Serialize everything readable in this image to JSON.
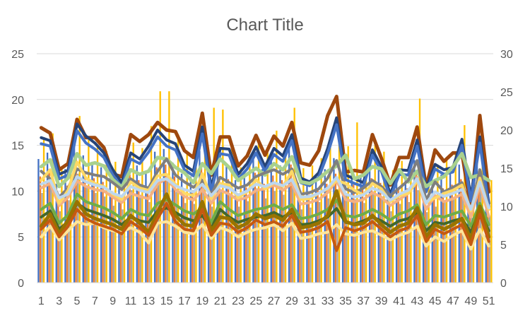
{
  "chart_data": {
    "type": "bar",
    "title": "Chart Title",
    "categories": [
      "1",
      "2",
      "3",
      "4",
      "5",
      "6",
      "7",
      "8",
      "9",
      "10",
      "11",
      "12",
      "13",
      "14",
      "15",
      "16",
      "17",
      "18",
      "19",
      "20",
      "21",
      "22",
      "23",
      "24",
      "25",
      "26",
      "27",
      "28",
      "29",
      "30",
      "31",
      "32",
      "33",
      "34",
      "35",
      "36",
      "37",
      "38",
      "39",
      "40",
      "41",
      "42",
      "43",
      "44",
      "45",
      "46",
      "47",
      "48",
      "49",
      "50",
      "51"
    ],
    "x_tick_labels": [
      "1",
      "3",
      "5",
      "7",
      "9",
      "11",
      "13",
      "15",
      "17",
      "19",
      "21",
      "23",
      "25",
      "27",
      "29",
      "31",
      "33",
      "35",
      "37",
      "39",
      "41",
      "43",
      "45",
      "47",
      "49",
      "51"
    ],
    "y_left": {
      "range": [
        0,
        25
      ],
      "ticks": [
        "0",
        "5",
        "10",
        "15",
        "20",
        "25"
      ]
    },
    "y_right": {
      "range": [
        0,
        30
      ],
      "ticks": [
        "0",
        "5",
        "10",
        "15",
        "20",
        "25",
        "30"
      ]
    },
    "grid": true,
    "legend": "none",
    "colors": [
      "#4472C4",
      "#ED7D31",
      "#A5A5A5",
      "#FFC000",
      "#5B9BD5",
      "#70AD47",
      "#264478",
      "#9E480E",
      "#636363",
      "#997300",
      "#255E91",
      "#43682B",
      "#698ED0",
      "#F1975A",
      "#B7B7B7",
      "#FFCD33",
      "#7CAFDD",
      "#8CC168"
    ],
    "bar_series": [
      {
        "values": [
          13.5,
          14.2,
          10.8,
          12.4,
          15.8,
          13.9,
          13.2,
          12.6,
          11.4,
          10.6,
          13.4,
          12.8,
          12.1,
          14.3,
          14.6,
          13.1,
          11.9,
          11.6,
          14.4,
          11.3,
          13.2,
          12.9,
          11.2,
          11.9,
          13.6,
          12.4,
          13.3,
          12.8,
          14.7,
          10.9,
          11.1,
          11.8,
          12.4,
          13.6,
          13.1,
          12.2,
          11.6,
          13.1,
          12.4,
          10.7,
          11.6,
          11.9,
          13.4,
          10.6,
          11.2,
          11.8,
          12.3,
          12.9,
          9.6,
          13.8,
          9.8
        ]
      },
      {
        "values": [
          11.6,
          12.4,
          9.2,
          10.6,
          13.8,
          12.1,
          11.4,
          11.0,
          9.8,
          9.4,
          11.8,
          11.2,
          10.4,
          12.6,
          12.9,
          11.6,
          10.2,
          10.1,
          12.7,
          9.8,
          11.6,
          11.3,
          9.7,
          10.4,
          12.0,
          10.8,
          11.7,
          11.2,
          12.9,
          9.4,
          9.6,
          10.3,
          10.8,
          11.9,
          11.4,
          10.7,
          10.2,
          11.4,
          10.9,
          9.2,
          10.1,
          10.3,
          11.8,
          9.1,
          9.8,
          10.3,
          10.7,
          11.3,
          8.4,
          12.1,
          8.6
        ]
      },
      {
        "values": [
          9.8,
          10.6,
          7.8,
          9.0,
          11.9,
          10.4,
          9.8,
          9.4,
          8.4,
          8.0,
          10.1,
          9.6,
          8.8,
          10.8,
          11.1,
          9.9,
          8.7,
          8.6,
          10.9,
          8.3,
          9.9,
          9.7,
          8.3,
          8.9,
          10.3,
          9.2,
          10.0,
          9.6,
          11.1,
          8.0,
          8.2,
          8.8,
          9.2,
          10.2,
          9.8,
          9.1,
          8.7,
          9.8,
          9.3,
          7.8,
          8.6,
          8.8,
          10.1,
          7.7,
          8.3,
          8.8,
          9.1,
          9.6,
          7.1,
          10.4,
          7.3
        ]
      },
      {
        "values": [
          15.9,
          16.3,
          12.4,
          14.2,
          18.2,
          15.6,
          15.1,
          14.4,
          13.2,
          12.1,
          15.3,
          14.7,
          17.1,
          20.9,
          20.9,
          16.2,
          14.0,
          13.4,
          16.4,
          19.1,
          18.9,
          14.6,
          12.6,
          13.8,
          15.4,
          14.2,
          16.6,
          14.6,
          19.1,
          12.5,
          12.8,
          13.6,
          15.8,
          15.4,
          14.9,
          17.5,
          13.3,
          15.0,
          14.3,
          12.3,
          13.3,
          13.6,
          20.1,
          12.1,
          12.9,
          13.5,
          14.1,
          17.2,
          11.1,
          15.8,
          11.2
        ]
      }
    ],
    "line_series": [
      {
        "color": "#9E480E",
        "width": 5,
        "values": [
          20.3,
          19.6,
          14.8,
          15.6,
          21.4,
          19.0,
          19.0,
          17.7,
          14.2,
          13.9,
          19.4,
          18.5,
          19.4,
          21.0,
          20.0,
          19.8,
          17.3,
          16.4,
          22.2,
          14.1,
          19.1,
          19.1,
          15.3,
          16.6,
          19.3,
          16.7,
          19.2,
          17.9,
          21.0,
          15.7,
          15.4,
          17.3,
          21.9,
          24.4,
          14.5,
          14.7,
          14.5,
          19.4,
          16.3,
          12.8,
          16.4,
          16.4,
          20.4,
          12.5,
          17.4,
          15.9,
          17.0,
          17.0,
          9.7,
          21.9,
          11.9
        ]
      },
      {
        "color": "#264478",
        "width": 4,
        "values": [
          19.0,
          18.6,
          14.2,
          14.7,
          20.8,
          19.2,
          18.3,
          17.0,
          14.8,
          13.1,
          17.0,
          16.2,
          17.9,
          20.0,
          18.7,
          18.2,
          15.4,
          14.6,
          20.4,
          12.4,
          17.6,
          17.5,
          14.2,
          15.6,
          17.8,
          15.2,
          17.6,
          16.6,
          19.4,
          13.7,
          13.2,
          14.4,
          17.6,
          21.6,
          14.1,
          13.6,
          13.1,
          17.4,
          15.2,
          11.6,
          14.8,
          14.7,
          18.7,
          12.4,
          15.5,
          14.8,
          15.1,
          18.8,
          11.2,
          19.1,
          10.4
        ]
      },
      {
        "color": "#4472C4",
        "width": 4,
        "values": [
          18.2,
          17.9,
          13.6,
          14.1,
          19.9,
          18.3,
          17.5,
          16.4,
          14.1,
          12.5,
          16.2,
          15.6,
          17.1,
          19.1,
          17.9,
          17.4,
          14.8,
          14.0,
          19.5,
          11.9,
          16.9,
          16.7,
          13.6,
          14.9,
          17.0,
          14.6,
          16.8,
          15.9,
          18.6,
          13.1,
          12.7,
          13.8,
          16.9,
          20.7,
          13.5,
          13.0,
          12.6,
          16.7,
          14.6,
          11.1,
          14.2,
          14.1,
          17.9,
          11.9,
          14.9,
          14.2,
          14.5,
          18.0,
          10.7,
          18.3,
          9.9
        ]
      },
      {
        "color": "#A9D18E",
        "width": 5,
        "values": [
          15.2,
          16.1,
          12.6,
          13.7,
          16.9,
          15.4,
          15.7,
          15.3,
          13.5,
          12.5,
          14.8,
          14.2,
          14.6,
          16.4,
          16.2,
          15.1,
          14.4,
          13.1,
          15.6,
          14.3,
          16.2,
          15.1,
          13.4,
          14.2,
          15.0,
          14.1,
          15.6,
          14.8,
          16.5,
          13.2,
          13.0,
          13.6,
          14.6,
          15.3,
          16.7,
          13.6,
          14.1,
          15.2,
          14.9,
          13.0,
          14.8,
          13.2,
          14.6,
          12.6,
          13.4,
          13.9,
          15.2,
          16.9,
          13.8,
          14.1,
          13.4
        ]
      },
      {
        "color": "#7F7F7F",
        "width": 4,
        "values": [
          14.6,
          13.6,
          11.2,
          12.4,
          14.9,
          14.4,
          14.1,
          13.9,
          13.1,
          12.2,
          13.6,
          12.8,
          12.4,
          14.6,
          16.2,
          14.1,
          13.2,
          12.5,
          13.4,
          11.6,
          13.8,
          13.1,
          12.4,
          12.8,
          13.9,
          14.4,
          14.8,
          14.2,
          14.9,
          11.6,
          11.8,
          12.3,
          13.7,
          16.0,
          12.3,
          11.8,
          12.4,
          13.4,
          12.6,
          11.4,
          12.4,
          13.4,
          16.0,
          10.8,
          13.2,
          11.9,
          12.5,
          13.1,
          9.4,
          14.8,
          9.6
        ]
      },
      {
        "color": "#F4B183",
        "width": 4,
        "values": [
          12.4,
          13.0,
          10.1,
          11.2,
          13.3,
          12.6,
          12.2,
          12.0,
          11.2,
          10.5,
          11.7,
          11.3,
          11.0,
          12.9,
          13.7,
          12.2,
          11.3,
          10.8,
          12.2,
          10.4,
          12.1,
          11.6,
          10.8,
          11.2,
          12.1,
          12.3,
          12.8,
          12.1,
          13.0,
          10.3,
          10.5,
          10.9,
          11.8,
          13.4,
          10.9,
          10.6,
          10.9,
          11.8,
          11.2,
          10.1,
          10.9,
          11.7,
          13.8,
          9.6,
          11.4,
          10.6,
          11.0,
          11.6,
          8.6,
          12.8,
          8.7
        ]
      },
      {
        "color": "#FFD966",
        "width": 4,
        "values": [
          13.4,
          14.8,
          10.4,
          12.1,
          15.8,
          13.7,
          13.0,
          12.6,
          11.6,
          10.9,
          13.2,
          12.4,
          12.1,
          14.0,
          14.2,
          12.9,
          11.7,
          11.4,
          14.3,
          11.0,
          13.0,
          12.8,
          11.1,
          11.9,
          13.5,
          12.3,
          13.1,
          12.6,
          14.6,
          10.9,
          11.0,
          11.7,
          12.3,
          13.4,
          13.0,
          12.1,
          11.5,
          13.0,
          12.3,
          10.6,
          11.4,
          11.7,
          13.3,
          10.5,
          11.1,
          11.7,
          12.1,
          12.8,
          9.4,
          13.7,
          9.6
        ]
      },
      {
        "color": "#BDD7EE",
        "width": 4,
        "values": [
          12.9,
          13.4,
          11.1,
          11.6,
          13.9,
          13.2,
          12.8,
          12.5,
          11.7,
          11.3,
          12.6,
          12.1,
          11.8,
          13.4,
          13.6,
          12.7,
          12.2,
          11.9,
          12.9,
          11.4,
          12.7,
          12.4,
          11.5,
          12.0,
          12.9,
          12.6,
          13.1,
          12.7,
          13.5,
          11.2,
          11.3,
          11.7,
          12.4,
          13.8,
          11.6,
          11.2,
          11.5,
          12.4,
          11.9,
          10.8,
          11.6,
          12.1,
          13.6,
          10.4,
          11.9,
          11.3,
          11.7,
          12.2,
          9.6,
          13.2,
          9.8
        ]
      },
      {
        "color": "#70AD47",
        "width": 4,
        "values": [
          9.6,
          10.4,
          7.8,
          8.9,
          11.6,
          10.6,
          10.2,
          9.8,
          9.2,
          8.4,
          9.6,
          9.0,
          8.8,
          10.4,
          10.9,
          10.2,
          9.4,
          9.0,
          9.8,
          7.9,
          10.6,
          9.6,
          8.8,
          9.2,
          9.6,
          9.8,
          10.2,
          9.6,
          10.2,
          8.4,
          8.6,
          9.0,
          9.6,
          10.8,
          8.8,
          8.6,
          9.0,
          9.6,
          9.0,
          8.2,
          9.0,
          9.4,
          10.2,
          7.6,
          8.8,
          8.6,
          9.0,
          9.4,
          7.4,
          10.4,
          7.6
        ]
      },
      {
        "color": "#43682B",
        "width": 4,
        "values": [
          8.6,
          9.4,
          7.0,
          8.0,
          10.4,
          9.6,
          9.2,
          8.8,
          8.3,
          7.6,
          8.6,
          8.1,
          7.9,
          9.4,
          9.8,
          9.2,
          8.5,
          8.1,
          8.8,
          7.1,
          9.6,
          8.6,
          7.9,
          8.3,
          8.6,
          8.8,
          9.2,
          8.6,
          9.2,
          7.6,
          7.7,
          8.1,
          8.6,
          9.7,
          7.9,
          7.7,
          8.1,
          8.6,
          8.1,
          7.4,
          8.1,
          8.4,
          9.2,
          6.8,
          7.9,
          7.7,
          8.1,
          8.4,
          6.6,
          9.4,
          6.8
        ]
      },
      {
        "color": "#FFE699",
        "width": 4,
        "values": [
          6.0,
          7.4,
          5.6,
          6.8,
          8.0,
          7.6,
          7.8,
          7.2,
          6.8,
          6.6,
          7.2,
          6.6,
          5.2,
          7.8,
          8.0,
          7.4,
          6.6,
          6.4,
          7.6,
          5.8,
          7.2,
          6.8,
          6.0,
          6.6,
          7.0,
          7.2,
          7.6,
          6.8,
          7.8,
          5.8,
          6.0,
          6.4,
          6.6,
          7.6,
          6.4,
          6.2,
          6.6,
          6.8,
          6.2,
          5.6,
          6.2,
          6.6,
          7.4,
          4.8,
          6.0,
          5.4,
          6.2,
          6.8,
          4.4,
          7.0,
          4.8
        ]
      },
      {
        "color": "#997300",
        "width": 5,
        "values": [
          7.4,
          9.0,
          6.4,
          8.2,
          10.6,
          9.0,
          8.4,
          8.0,
          7.6,
          7.0,
          8.8,
          7.8,
          6.6,
          9.2,
          11.6,
          8.8,
          7.6,
          7.4,
          10.6,
          6.8,
          8.6,
          8.4,
          7.2,
          7.8,
          9.0,
          8.4,
          8.8,
          8.2,
          9.6,
          7.2,
          7.4,
          7.8,
          8.8,
          12.0,
          8.0,
          7.6,
          7.8,
          8.8,
          7.6,
          6.6,
          7.4,
          7.8,
          9.8,
          6.0,
          7.6,
          7.0,
          7.6,
          8.4,
          5.6,
          10.0,
          6.0
        ]
      },
      {
        "color": "#C55A11",
        "width": 4,
        "values": [
          7.0,
          8.2,
          6.0,
          7.4,
          9.6,
          8.4,
          7.8,
          7.4,
          7.0,
          6.4,
          8.0,
          7.2,
          6.2,
          8.4,
          10.4,
          8.0,
          7.0,
          6.8,
          9.6,
          6.2,
          7.8,
          7.6,
          6.6,
          7.2,
          8.2,
          7.6,
          8.0,
          7.4,
          8.8,
          6.6,
          6.8,
          7.2,
          8.0,
          4.2,
          7.2,
          6.8,
          7.2,
          8.0,
          7.0,
          6.0,
          6.8,
          7.2,
          8.8,
          5.4,
          7.0,
          6.4,
          7.0,
          7.6,
          5.0,
          9.0,
          5.4
        ]
      }
    ]
  }
}
